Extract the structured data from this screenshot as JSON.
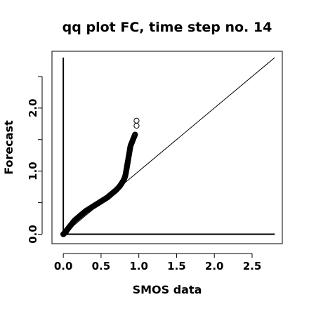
{
  "chart_data": {
    "type": "scatter",
    "title": "qq plot FC, time step no. 14",
    "xlabel": "SMOS data",
    "ylabel": "Forecast",
    "xlim": [
      -0.15,
      2.9
    ],
    "ylim": [
      -0.15,
      2.9
    ],
    "x_ticks": [
      0.0,
      0.5,
      1.0,
      1.5,
      2.0,
      2.5
    ],
    "x_tick_labels": [
      "0.0",
      "0.5",
      "1.0",
      "1.5",
      "2.0",
      "2.5"
    ],
    "y_ticks": [
      0.0,
      0.5,
      1.0,
      1.5,
      2.0,
      2.5
    ],
    "y_tick_labels": [
      "0.0",
      "",
      "1.0",
      "",
      "2.0",
      ""
    ],
    "marker": "open-circle",
    "grid": false,
    "reference_lines": [
      {
        "kind": "diagonal",
        "from": [
          0,
          0
        ],
        "to": [
          2.8,
          2.8
        ]
      },
      {
        "kind": "horizontal",
        "y": 0,
        "x_from": 0,
        "x_to": 2.8
      },
      {
        "kind": "vertical",
        "x": 0,
        "y_from": 0,
        "y_to": 2.8
      }
    ],
    "points": [
      [
        0.0,
        0.0
      ],
      [
        0.01,
        0.01
      ],
      [
        0.02,
        0.02
      ],
      [
        0.03,
        0.03
      ],
      [
        0.04,
        0.05
      ],
      [
        0.05,
        0.07
      ],
      [
        0.07,
        0.1
      ],
      [
        0.09,
        0.13
      ],
      [
        0.11,
        0.16
      ],
      [
        0.13,
        0.19
      ],
      [
        0.15,
        0.22
      ],
      [
        0.18,
        0.25
      ],
      [
        0.21,
        0.28
      ],
      [
        0.24,
        0.31
      ],
      [
        0.27,
        0.34
      ],
      [
        0.3,
        0.37
      ],
      [
        0.34,
        0.4
      ],
      [
        0.38,
        0.43
      ],
      [
        0.42,
        0.46
      ],
      [
        0.46,
        0.49
      ],
      [
        0.5,
        0.52
      ],
      [
        0.54,
        0.55
      ],
      [
        0.58,
        0.58
      ],
      [
        0.62,
        0.62
      ],
      [
        0.66,
        0.66
      ],
      [
        0.7,
        0.7
      ],
      [
        0.74,
        0.75
      ],
      [
        0.77,
        0.8
      ],
      [
        0.8,
        0.86
      ],
      [
        0.82,
        0.92
      ],
      [
        0.83,
        0.98
      ],
      [
        0.84,
        1.05
      ],
      [
        0.85,
        1.12
      ],
      [
        0.86,
        1.19
      ],
      [
        0.87,
        1.26
      ],
      [
        0.88,
        1.33
      ],
      [
        0.89,
        1.4
      ],
      [
        0.91,
        1.46
      ],
      [
        0.93,
        1.52
      ],
      [
        0.95,
        1.58
      ],
      [
        0.97,
        1.72
      ],
      [
        0.97,
        1.8
      ]
    ]
  }
}
